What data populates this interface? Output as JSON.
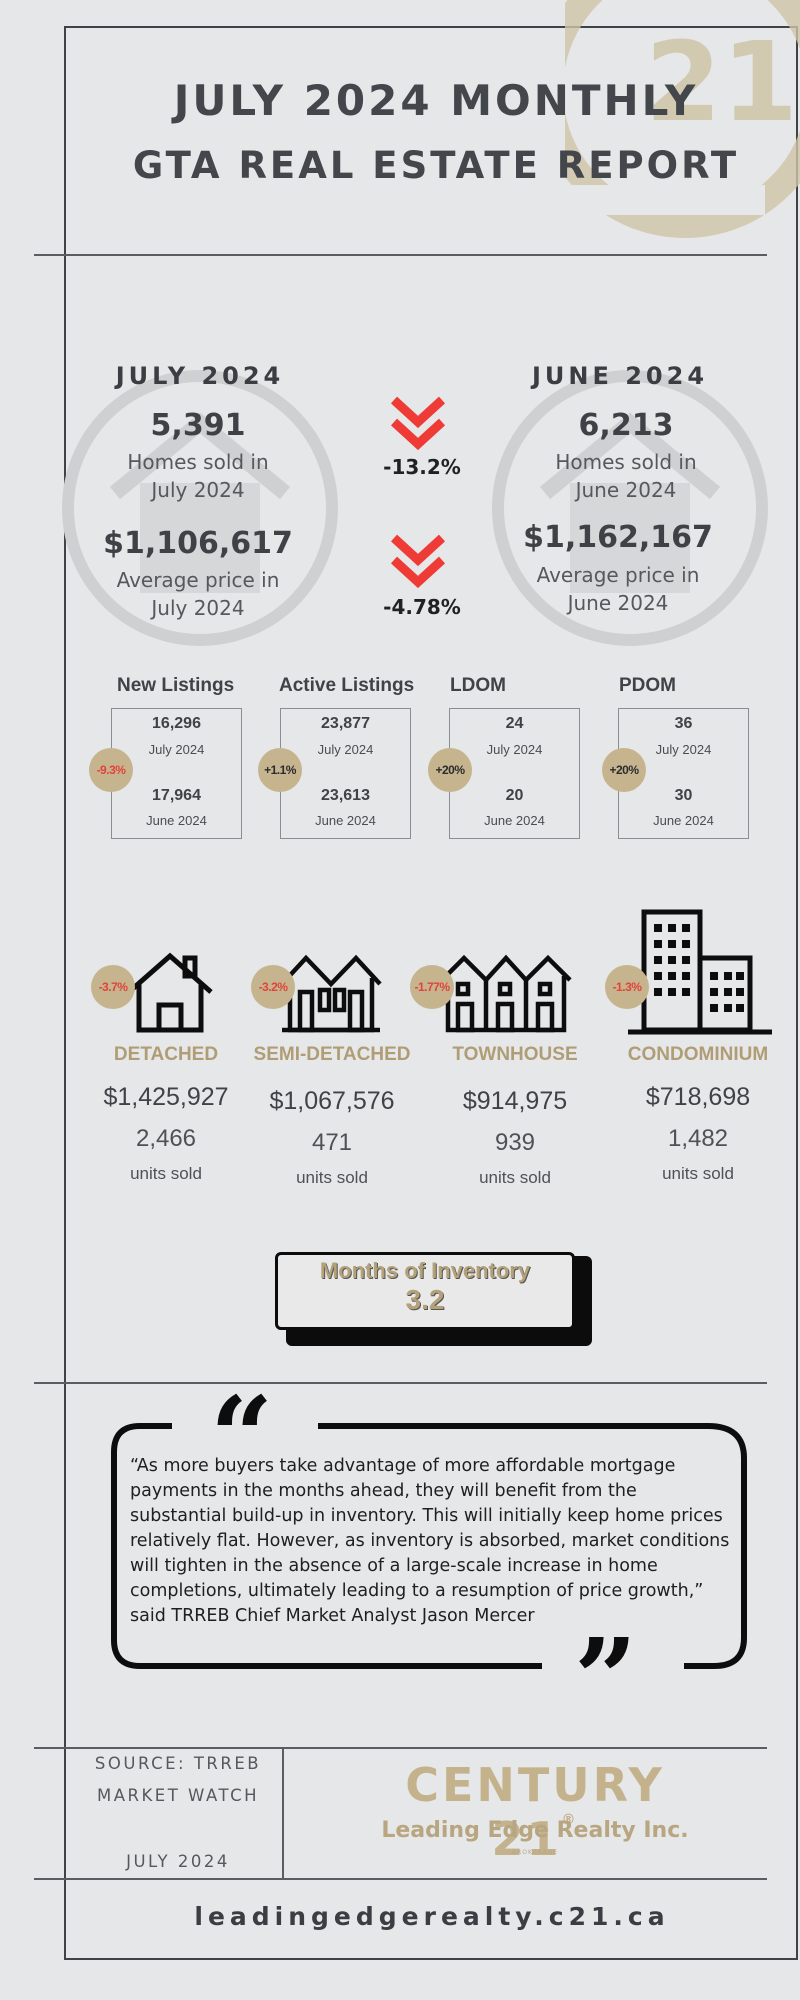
{
  "header": {
    "line1": "JULY 2024 MONTHLY",
    "line2": "GTA REAL ESTATE REPORT"
  },
  "comparison": {
    "current": {
      "heading": "JULY 2024",
      "homes_sold": "5,391",
      "homes_sold_label1": "Homes sold in",
      "homes_sold_label2": "July 2024",
      "avg_price": "$1,106,617",
      "avg_price_label1": "Average price in",
      "avg_price_label2": "July 2024"
    },
    "previous": {
      "heading": "JUNE 2024",
      "homes_sold": "6,213",
      "homes_sold_label1": "Homes sold in",
      "homes_sold_label2": "June 2024",
      "avg_price": "$1,162,167",
      "avg_price_label1": "Average price in",
      "avg_price_label2": "June 2024"
    },
    "homes_sold_change": "-13.2%",
    "avg_price_change": "-4.78%"
  },
  "metrics": [
    {
      "title": "New Listings",
      "change": "-9.3%",
      "current_value": "16,296",
      "current_month": "July 2024",
      "previous_value": "17,964",
      "previous_month": "June 2024"
    },
    {
      "title": "Active Listings",
      "change": "+1.1%",
      "current_value": "23,877",
      "current_month": "July 2024",
      "previous_value": "23,613",
      "previous_month": "June 2024"
    },
    {
      "title": "LDOM",
      "change": "+20%",
      "current_value": "24",
      "current_month": "July 2024",
      "previous_value": "20",
      "previous_month": "June 2024"
    },
    {
      "title": "PDOM",
      "change": "+20%",
      "current_value": "36",
      "current_month": "July 2024",
      "previous_value": "30",
      "previous_month": "June 2024"
    }
  ],
  "property_types": [
    {
      "name": "DETACHED",
      "change": "-3.7%",
      "price": "$1,425,927",
      "units": "2,466",
      "units_label": "units sold",
      "icon": "detached-house-icon"
    },
    {
      "name": "SEMI-DETACHED",
      "change": "-3.2%",
      "price": "$1,067,576",
      "units": "471",
      "units_label": "units sold",
      "icon": "semi-detached-icon"
    },
    {
      "name": "TOWNHOUSE",
      "change": "-1.77%",
      "price": "$914,975",
      "units": "939",
      "units_label": "units sold",
      "icon": "townhouse-icon"
    },
    {
      "name": "CONDOMINIUM",
      "change": "-1.3%",
      "price": "$718,698",
      "units": "1,482",
      "units_label": "units sold",
      "icon": "condominium-icon"
    }
  ],
  "inventory": {
    "label": "Months of Inventory",
    "value": "3.2"
  },
  "quote": {
    "text": "“As more buyers take advantage of more affordable mortgage payments in the months ahead, they will benefit from the substantial build-up in inventory. This will initially keep home prices relatively flat. However, as inventory is absorbed, market conditions will tighten in the absence of a large-scale increase in home completions, ultimately leading to a resumption of price growth,” said TRREB Chief Market Analyst Jason Mercer"
  },
  "footer": {
    "source_line1": "SOURCE: TRREB",
    "source_line2": "MARKET WATCH",
    "source_date": "JULY 2024",
    "brand_name": "CENTURY 21",
    "brand_mark": "®",
    "brand_subtitle": "Leading Edge Realty Inc.",
    "brand_tag": "BROKERAGE",
    "website": "leadingedgerealty.c21.ca"
  },
  "colors": {
    "background": "#e6e7e9",
    "accent_gold": "#c6b48e",
    "down_red": "#ef3b36",
    "text_dark": "#3d4044"
  }
}
